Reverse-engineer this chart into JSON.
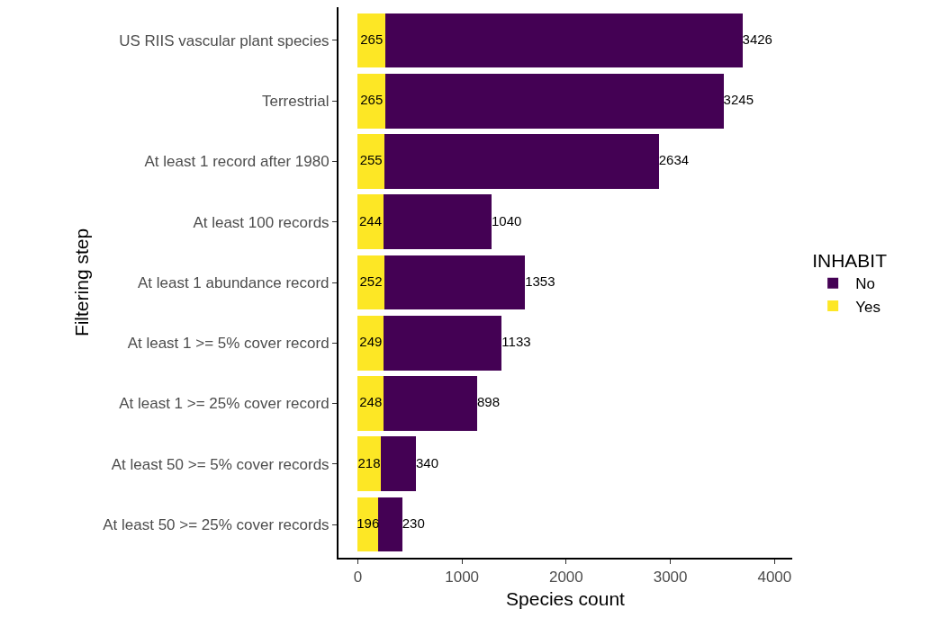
{
  "chart_data": {
    "type": "bar",
    "orientation": "horizontal",
    "stacked": true,
    "data_labels": true,
    "xlabel": "Species count",
    "ylabel": "Filtering step",
    "legend_title": "INHABIT",
    "legend": "right",
    "grid": false,
    "categories": [
      "US RIIS vascular plant species",
      "Terrestrial",
      "At least 1 record after 1980",
      "At least 100 records",
      "At least 1 abundance record",
      "At least 1 >= 5% cover record",
      "At least 1 >= 25% cover record",
      "At least 50 >= 5% cover records",
      "At least 50 >= 25% cover records"
    ],
    "series": [
      {
        "name": "Yes",
        "color": "#fde725",
        "values": [
          265,
          265,
          255,
          244,
          252,
          249,
          248,
          218,
          196
        ]
      },
      {
        "name": "No",
        "color": "#440154",
        "values": [
          3426,
          3245,
          2634,
          1040,
          1353,
          1133,
          898,
          340,
          230
        ]
      }
    ],
    "xlim": [
      -185,
      4170
    ],
    "xticks": [
      0,
      1000,
      2000,
      3000,
      4000
    ]
  }
}
